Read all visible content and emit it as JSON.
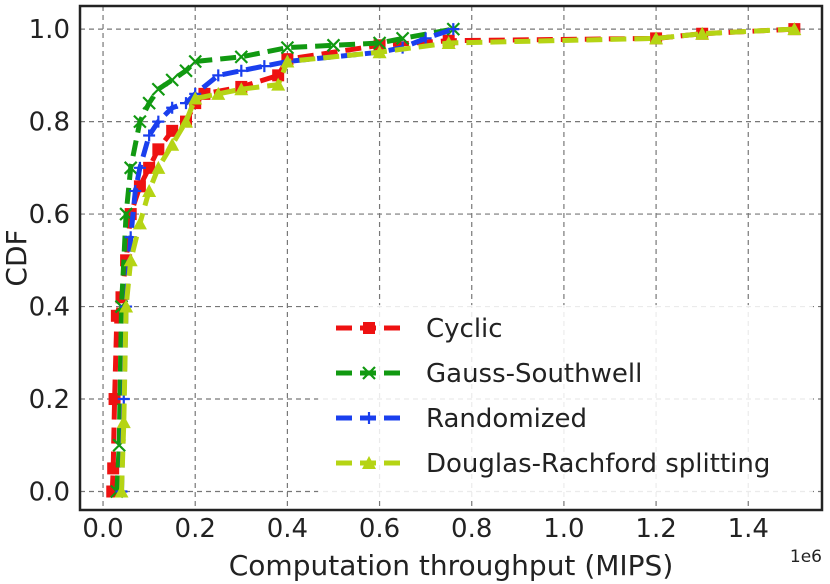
{
  "chart_data": {
    "type": "line",
    "title": "",
    "xlabel": "Computation throughput (MIPS)",
    "ylabel": "CDF",
    "x_offset_label": "1e6",
    "xlim": [
      -0.05,
      1.56
    ],
    "ylim": [
      -0.04,
      1.05
    ],
    "grid": true,
    "legend_position": "lower-right",
    "x_ticks": [
      {
        "value": 0.0,
        "label": "0.0"
      },
      {
        "value": 0.2,
        "label": "0.2"
      },
      {
        "value": 0.4,
        "label": "0.4"
      },
      {
        "value": 0.6,
        "label": "0.6"
      },
      {
        "value": 0.8,
        "label": "0.8"
      },
      {
        "value": 1.0,
        "label": "1.0"
      },
      {
        "value": 1.2,
        "label": "1.2"
      },
      {
        "value": 1.4,
        "label": "1.4"
      }
    ],
    "y_ticks": [
      {
        "value": 0.0,
        "label": "0.0"
      },
      {
        "value": 0.2,
        "label": "0.2"
      },
      {
        "value": 0.4,
        "label": "0.4"
      },
      {
        "value": 0.6,
        "label": "0.6"
      },
      {
        "value": 0.8,
        "label": "0.8"
      },
      {
        "value": 1.0,
        "label": "1.0"
      }
    ],
    "series": [
      {
        "name": "Cyclic",
        "color": "#ee1111",
        "marker": "square",
        "x": [
          0.02,
          0.022,
          0.025,
          0.03,
          0.04,
          0.05,
          0.06,
          0.08,
          0.1,
          0.12,
          0.15,
          0.18,
          0.2,
          0.22,
          0.3,
          0.38,
          0.4,
          0.6,
          0.75,
          1.2,
          1.3,
          1.5
        ],
        "y": [
          0.0,
          0.05,
          0.2,
          0.38,
          0.42,
          0.5,
          0.6,
          0.66,
          0.7,
          0.74,
          0.78,
          0.8,
          0.84,
          0.86,
          0.875,
          0.9,
          0.935,
          0.965,
          0.975,
          0.98,
          0.99,
          1.0
        ]
      },
      {
        "name": "Gauss-Southwell",
        "color": "#119911",
        "marker": "x",
        "x": [
          0.03,
          0.035,
          0.04,
          0.05,
          0.06,
          0.08,
          0.1,
          0.12,
          0.15,
          0.18,
          0.2,
          0.3,
          0.4,
          0.5,
          0.6,
          0.65,
          0.76
        ],
        "y": [
          0.0,
          0.1,
          0.4,
          0.6,
          0.7,
          0.8,
          0.84,
          0.87,
          0.89,
          0.91,
          0.93,
          0.94,
          0.96,
          0.965,
          0.97,
          0.98,
          1.0
        ]
      },
      {
        "name": "Randomized",
        "color": "#1a3fee",
        "marker": "plus",
        "x": [
          0.04,
          0.045,
          0.05,
          0.06,
          0.07,
          0.08,
          0.1,
          0.12,
          0.15,
          0.18,
          0.2,
          0.25,
          0.3,
          0.35,
          0.4,
          0.6,
          0.65,
          0.7,
          0.76
        ],
        "y": [
          0.0,
          0.2,
          0.4,
          0.55,
          0.65,
          0.7,
          0.77,
          0.8,
          0.83,
          0.84,
          0.86,
          0.9,
          0.91,
          0.92,
          0.93,
          0.95,
          0.96,
          0.98,
          1.0
        ]
      },
      {
        "name": "Douglas-Rachford splitting",
        "color": "#b5d414",
        "marker": "triangle",
        "x": [
          0.04,
          0.045,
          0.05,
          0.06,
          0.08,
          0.1,
          0.12,
          0.15,
          0.18,
          0.2,
          0.25,
          0.3,
          0.38,
          0.4,
          0.6,
          0.75,
          1.2,
          1.3,
          1.5
        ],
        "y": [
          0.0,
          0.15,
          0.4,
          0.5,
          0.58,
          0.65,
          0.7,
          0.75,
          0.8,
          0.85,
          0.86,
          0.87,
          0.88,
          0.93,
          0.95,
          0.97,
          0.98,
          0.99,
          1.0
        ]
      }
    ]
  }
}
